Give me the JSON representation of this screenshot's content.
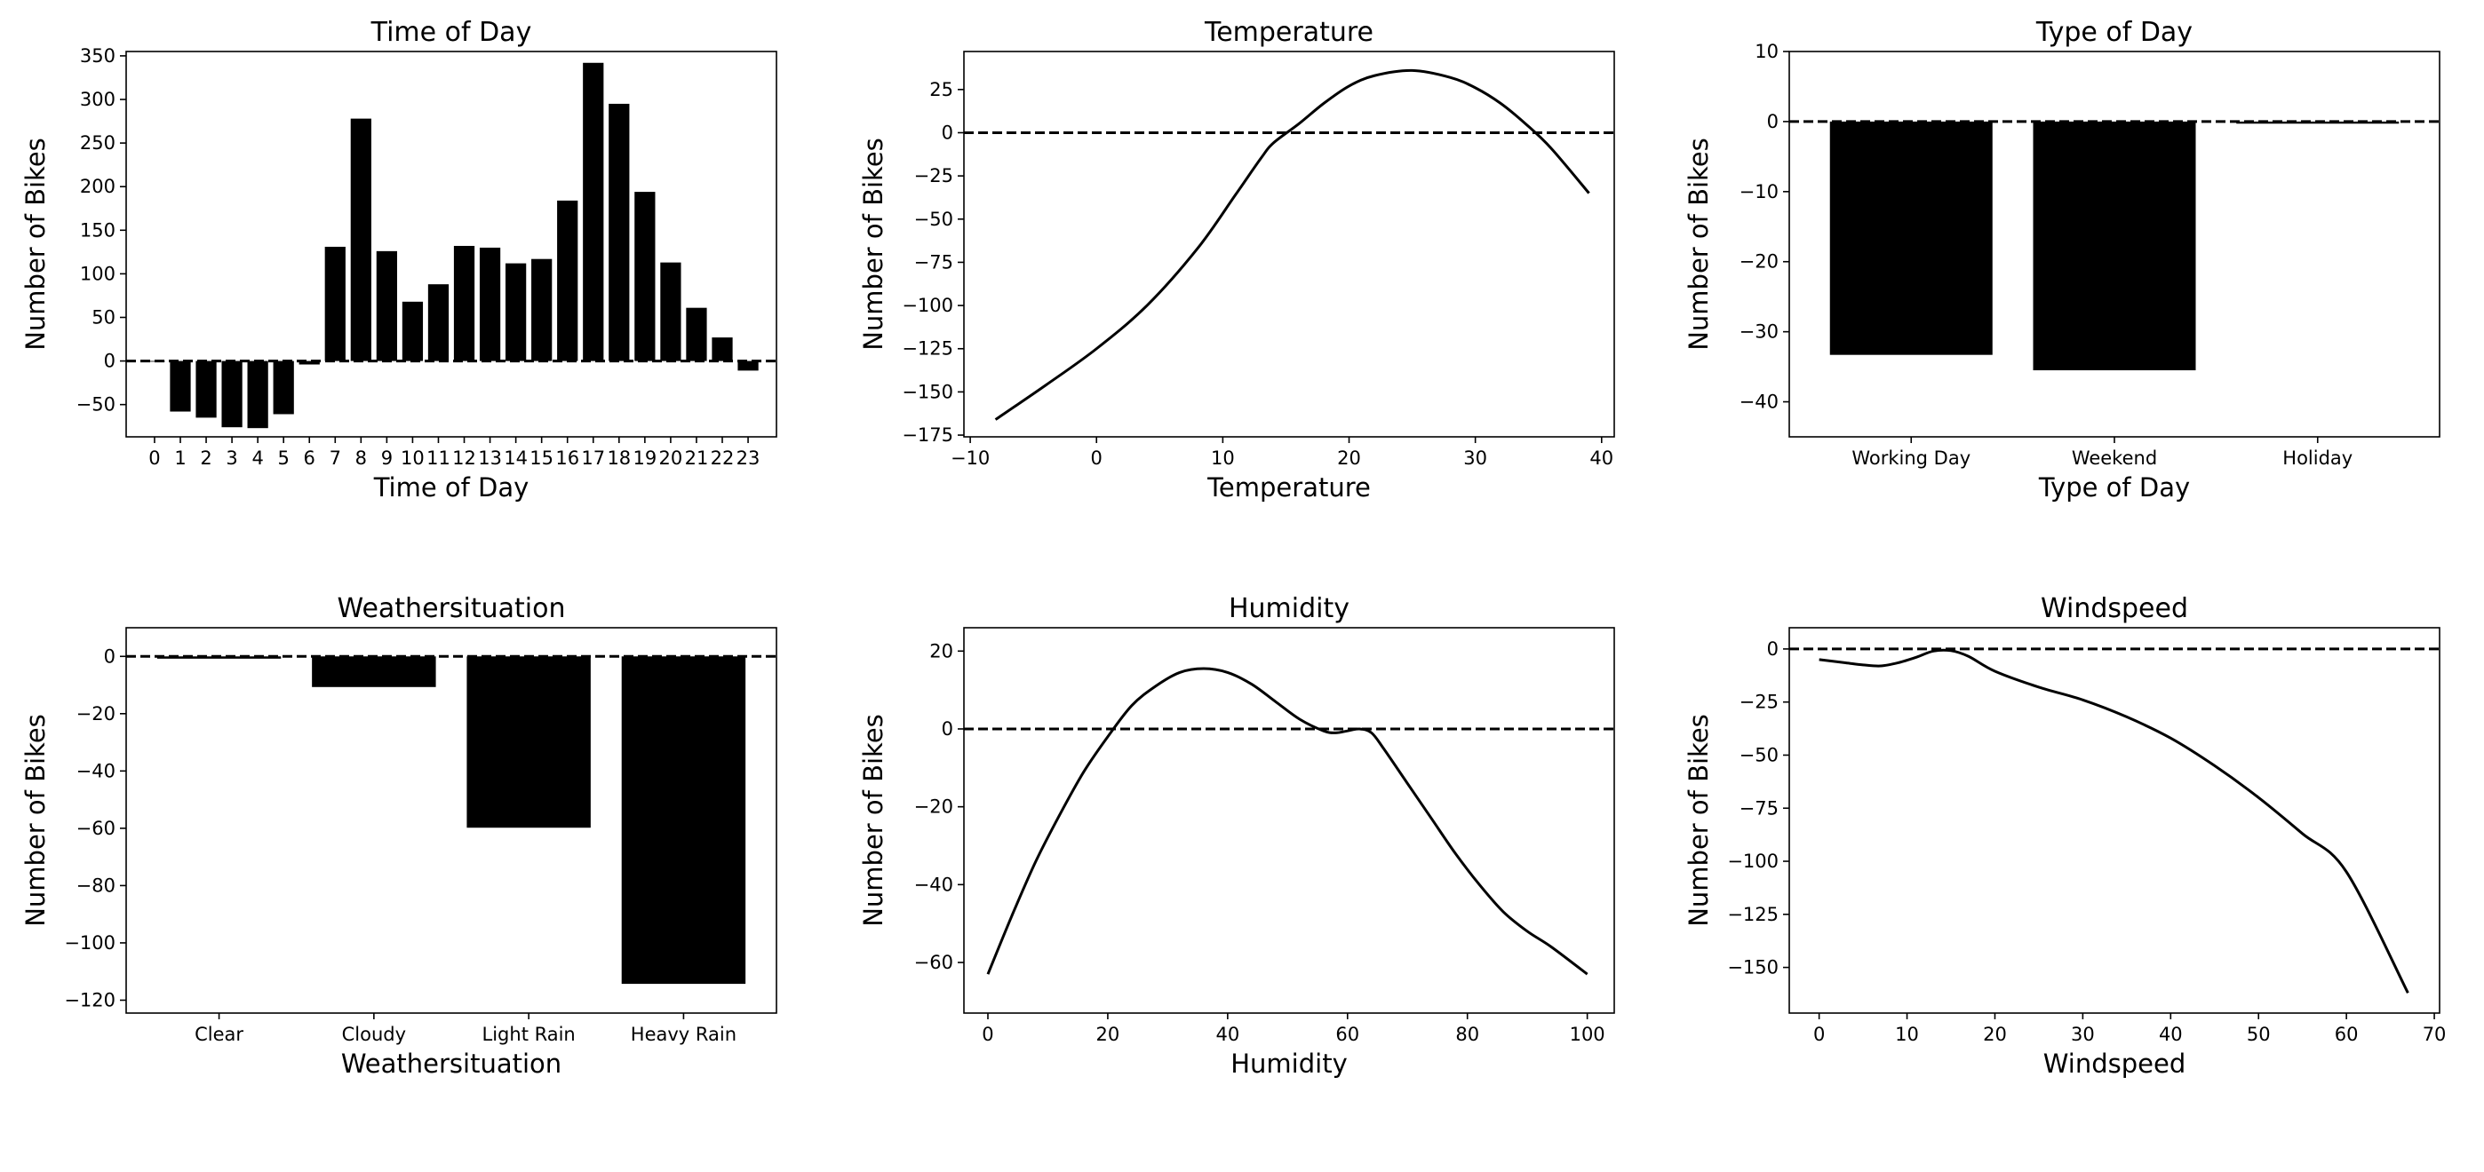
{
  "chart_data": [
    {
      "type": "bar",
      "title": "Time of Day",
      "xlabel": "Time of Day",
      "ylabel": "Number of Bikes",
      "categories": [
        "0",
        "1",
        "2",
        "3",
        "4",
        "5",
        "6",
        "7",
        "8",
        "9",
        "10",
        "11",
        "12",
        "13",
        "14",
        "15",
        "16",
        "17",
        "18",
        "19",
        "20",
        "21",
        "22",
        "23"
      ],
      "values": [
        0,
        -58,
        -65,
        -76,
        -77,
        -61,
        -4,
        131,
        278,
        126,
        68,
        88,
        132,
        130,
        112,
        117,
        184,
        342,
        295,
        194,
        113,
        61,
        27,
        -11
      ],
      "xlim": [
        -1.1,
        24.1
      ],
      "ylim": [
        -87,
        355
      ],
      "yticks": [
        -50,
        0,
        50,
        100,
        150,
        200,
        250,
        300,
        350
      ],
      "reference_line": {
        "y": 0,
        "style": "dashed"
      },
      "color": "#000000",
      "grid": false
    },
    {
      "type": "line",
      "title": "Temperature",
      "xlabel": "Temperature",
      "ylabel": "Number of Bikes",
      "x": [
        -8,
        -4,
        0,
        4,
        8,
        11,
        13,
        14,
        16,
        18,
        20,
        22,
        25,
        28,
        30,
        32,
        34,
        36,
        39
      ],
      "y": [
        -166,
        -146,
        -125,
        -100,
        -67,
        -36,
        -15,
        -6,
        5,
        17,
        27,
        33,
        36,
        32,
        26,
        17,
        5,
        -9,
        -35
      ],
      "xlim": [
        -10.5,
        41
      ],
      "ylim": [
        -176,
        47
      ],
      "xticks": [
        -10,
        0,
        10,
        20,
        30,
        40
      ],
      "yticks": [
        -175,
        -150,
        -125,
        -100,
        -75,
        -50,
        -25,
        0,
        25
      ],
      "reference_line": {
        "y": 0,
        "style": "dashed"
      },
      "color": "#000000",
      "grid": false
    },
    {
      "type": "bar",
      "title": "Type of Day",
      "xlabel": "Type of Day",
      "ylabel": "Number of Bikes",
      "categories": [
        "Working Day",
        "Weekend",
        "Holiday"
      ],
      "values": [
        -33.3,
        -35.5,
        -0.3
      ],
      "xlim": [
        -0.6,
        2.6
      ],
      "ylim": [
        -45,
        10
      ],
      "yticks": [
        -40,
        -30,
        -20,
        -10,
        0,
        10
      ],
      "reference_line": {
        "y": 0,
        "style": "dashed"
      },
      "color": "#000000",
      "grid": false
    },
    {
      "type": "bar",
      "title": "Weathersituation",
      "xlabel": "Weathersituation",
      "ylabel": "Number of Bikes",
      "categories": [
        "Clear",
        "Cloudy",
        "Light Rain",
        "Heavy Rain"
      ],
      "values": [
        -0.8,
        -10.7,
        -59.8,
        -114.3
      ],
      "xlim": [
        -0.6,
        3.6
      ],
      "ylim": [
        -124.5,
        10
      ],
      "yticks": [
        -120,
        -100,
        -80,
        -60,
        -40,
        -20,
        0
      ],
      "reference_line": {
        "y": 0,
        "style": "dashed"
      },
      "color": "#000000",
      "grid": false
    },
    {
      "type": "line",
      "title": "Humidity",
      "xlabel": "Humidity",
      "ylabel": "Number of Bikes",
      "x": [
        0,
        4,
        8,
        12,
        16,
        20,
        24,
        28,
        32,
        36,
        40,
        44,
        48,
        52,
        56,
        58,
        60,
        62,
        64,
        66,
        70,
        74,
        78,
        82,
        86,
        90,
        94,
        100
      ],
      "y": [
        -63,
        -48,
        -34,
        -22,
        -11,
        -2,
        6,
        11,
        14.5,
        15.5,
        14.5,
        11.5,
        7,
        2.5,
        -0.5,
        -1,
        -0.5,
        0,
        -1,
        -5,
        -14,
        -23,
        -32,
        -40,
        -47,
        -52,
        -56,
        -63
      ],
      "xlim": [
        -4,
        104.5
      ],
      "ylim": [
        -73,
        26
      ],
      "xticks": [
        0,
        20,
        40,
        60,
        80,
        100
      ],
      "yticks": [
        -60,
        -40,
        -20,
        0,
        20
      ],
      "reference_line": {
        "y": 0,
        "style": "dashed"
      },
      "color": "#000000",
      "grid": false
    },
    {
      "type": "line",
      "title": "Windspeed",
      "xlabel": "Windspeed",
      "ylabel": "Number of Bikes",
      "x": [
        0,
        3,
        5,
        7,
        9,
        11,
        13,
        15,
        17,
        20,
        25,
        30,
        35,
        40,
        45,
        50,
        55,
        60,
        67
      ],
      "y": [
        -5,
        -6.5,
        -7.5,
        -8,
        -6.5,
        -4,
        -1,
        -0.8,
        -3.5,
        -10.5,
        -18,
        -24,
        -32,
        -42,
        -55,
        -70,
        -87,
        -105,
        -162
      ],
      "xlim": [
        -3.4,
        70.6
      ],
      "ylim": [
        -171.5,
        10
      ],
      "xticks": [
        0,
        10,
        20,
        30,
        40,
        50,
        60,
        70
      ],
      "yticks": [
        -150,
        -125,
        -100,
        -75,
        -50,
        -25,
        0
      ],
      "reference_line": {
        "y": 0,
        "style": "dashed"
      },
      "color": "#000000",
      "grid": false
    }
  ]
}
